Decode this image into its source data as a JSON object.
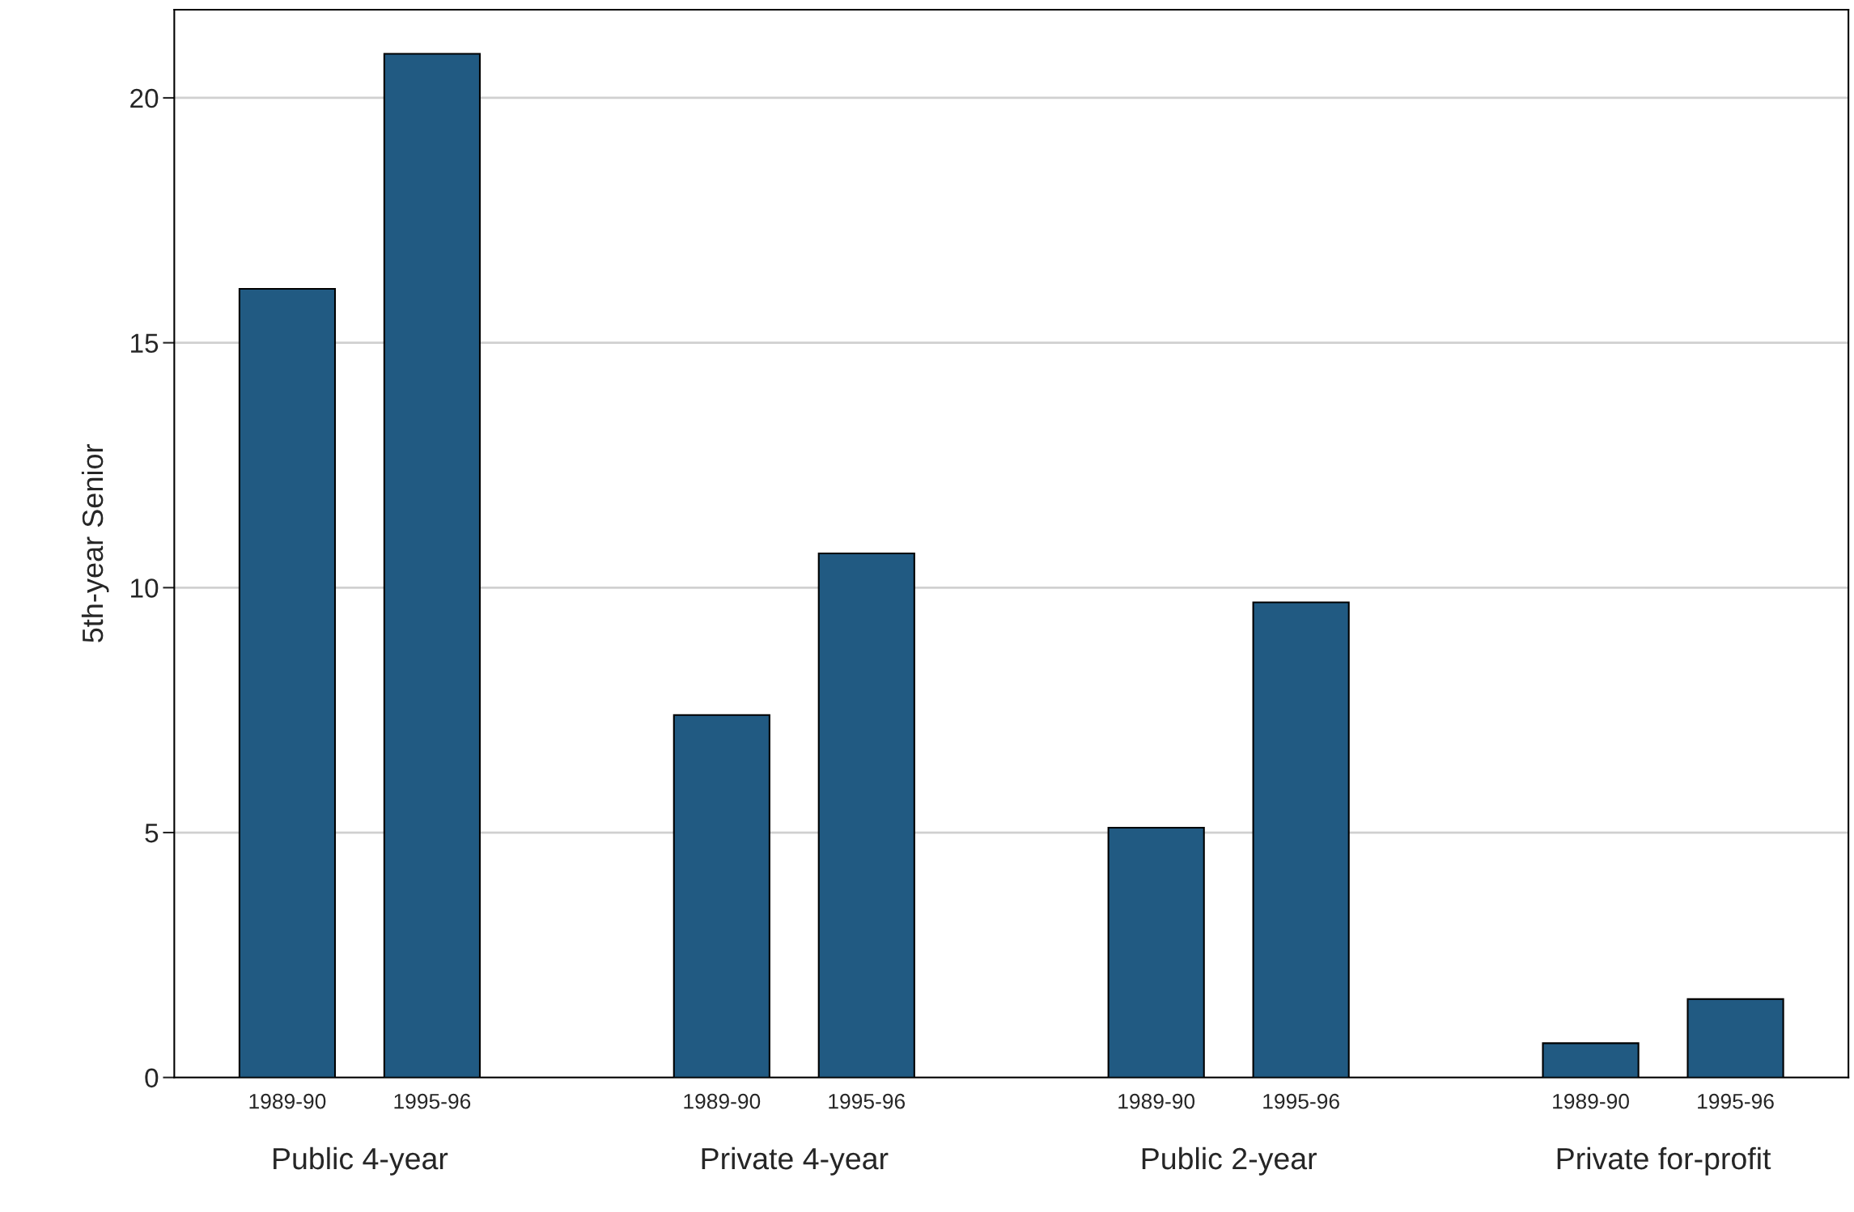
{
  "chart_data": {
    "type": "bar",
    "ylabel": "5th-year Senior",
    "categories": [
      "1989-90",
      "1995-96",
      null,
      "1989-90",
      "1995-96",
      null,
      "1989-90",
      "1995-96",
      null,
      "1989-90",
      "1995-96"
    ],
    "values": [
      16.1,
      20.9,
      null,
      7.4,
      10.7,
      null,
      5.1,
      9.7,
      null,
      0.7,
      1.6
    ],
    "color": "#215a82",
    "annotations": [
      "Public 4-year",
      "Private 4-year",
      "Public 2-year",
      "Private for-profit"
    ],
    "ylim": [
      0,
      21.8
    ],
    "yticks": [
      0,
      5,
      10,
      15,
      20
    ],
    "grid": "y",
    "legend": false
  }
}
